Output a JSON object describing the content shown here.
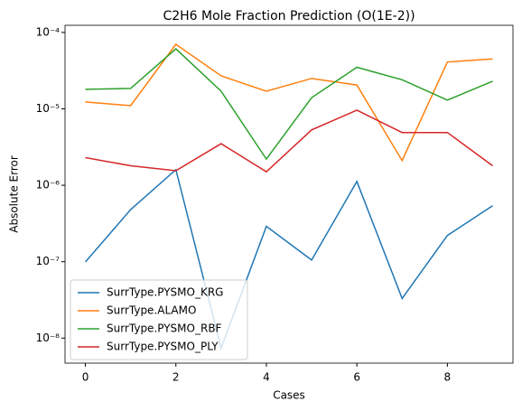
{
  "chart_data": {
    "type": "line",
    "title": "C2H6 Mole Fraction Prediction (O(1E-2))",
    "xlabel": "Cases",
    "ylabel": "Absolute Error",
    "log_y": true,
    "legend": "lower left",
    "x": [
      0,
      1,
      2,
      3,
      4,
      5,
      6,
      7,
      8,
      9
    ],
    "xlim": [
      -0.45,
      9.45
    ],
    "xticks": [
      0,
      2,
      4,
      6,
      8
    ],
    "ylim": [
      4.7e-09,
      0.000124
    ],
    "yticks": [
      {
        "value": 1e-08,
        "label": "10⁻⁸"
      },
      {
        "value": 1e-07,
        "label": "10⁻⁷"
      },
      {
        "value": 1e-06,
        "label": "10⁻⁶"
      },
      {
        "value": 1e-05,
        "label": "10⁻⁵"
      },
      {
        "value": 0.0001,
        "label": "10⁻⁴"
      }
    ],
    "series": [
      {
        "name": "SurrType.PYSMO_KRG",
        "color": "#1f77b4",
        "values": [
          9.9e-08,
          4.8e-07,
          1.6e-06,
          7.4e-09,
          2.9e-07,
          1.05e-07,
          1.12e-06,
          3.3e-08,
          2.2e-07,
          5.4e-07
        ]
      },
      {
        "name": "SurrType.ALAMO",
        "color": "#ff7f0e",
        "values": [
          1.23e-05,
          1.1e-05,
          7e-05,
          2.7e-05,
          1.7e-05,
          2.5e-05,
          2.05e-05,
          2.1e-06,
          4.1e-05,
          4.5e-05
        ]
      },
      {
        "name": "SurrType.PYSMO_RBF",
        "color": "#2ca02c",
        "values": [
          1.8e-05,
          1.85e-05,
          6.1e-05,
          1.7e-05,
          2.2e-06,
          1.4e-05,
          3.5e-05,
          2.4e-05,
          1.3e-05,
          2.3e-05
        ]
      },
      {
        "name": "SurrType.PYSMO_PLY",
        "color": "#d62728",
        "values": [
          2.3e-06,
          1.8e-06,
          1.55e-06,
          3.5e-06,
          1.5e-06,
          5.3e-06,
          9.6e-06,
          4.9e-06,
          4.9e-06,
          1.8e-06
        ]
      }
    ]
  }
}
